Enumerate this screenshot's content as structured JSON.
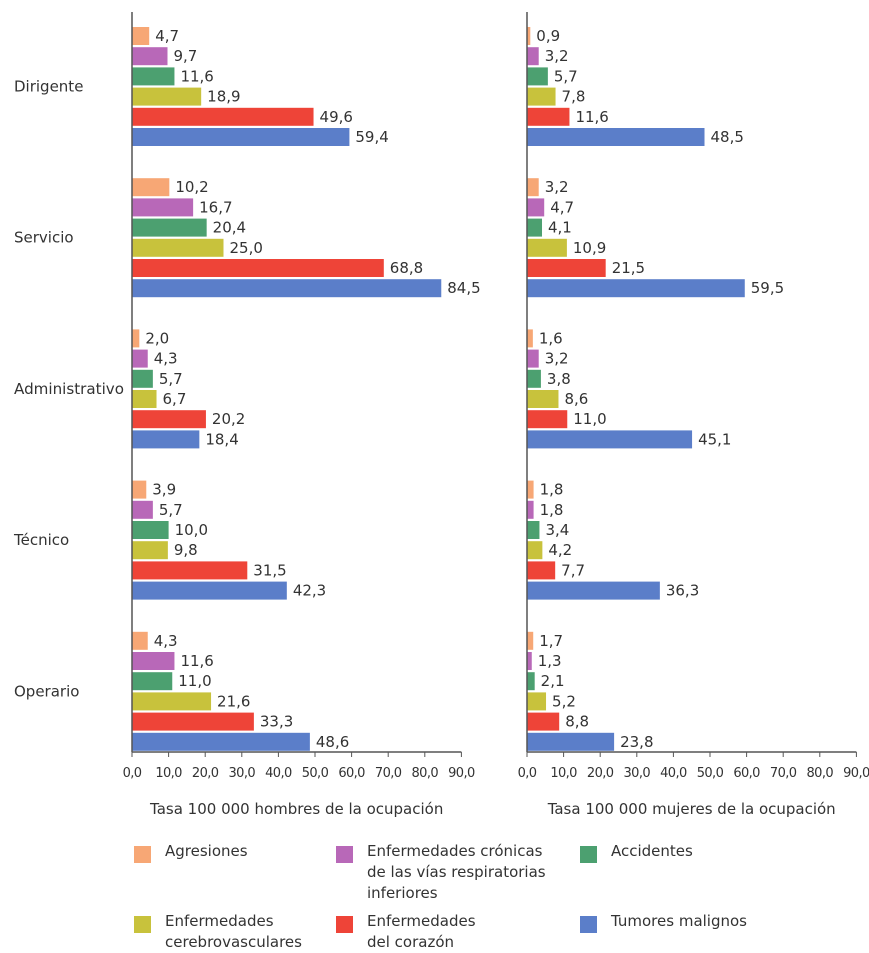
{
  "chart_data": {
    "type": "bar",
    "orientation": "horizontal",
    "categories": [
      "Dirigente",
      "Servicio",
      "Administrativo",
      "Técnico",
      "Operario"
    ],
    "series": [
      {
        "name": "Agresiones",
        "color": "#f7a775"
      },
      {
        "name": "Enfermedades crónicas de las vías respiratorias inferiores",
        "color": "#b868b8"
      },
      {
        "name": "Accidentes",
        "color": "#4ca070"
      },
      {
        "name": "Enfermedades cerebrovasculares",
        "color": "#c8c23c"
      },
      {
        "name": "Enfermedades del corazón",
        "color": "#ee4438"
      },
      {
        "name": "Tumores malignos",
        "color": "#5b7ec9"
      }
    ],
    "panels": [
      {
        "xlabel": "Tasa 100 000 hombres de la ocupación",
        "values": [
          [
            4.7,
            9.7,
            11.6,
            18.9,
            49.6,
            59.4
          ],
          [
            10.2,
            16.7,
            20.4,
            25.0,
            68.8,
            84.5
          ],
          [
            2.0,
            4.3,
            5.7,
            6.7,
            20.2,
            18.4
          ],
          [
            3.9,
            5.7,
            10.0,
            9.8,
            31.5,
            42.3
          ],
          [
            4.3,
            11.6,
            11.0,
            21.6,
            33.3,
            48.6
          ]
        ],
        "labels": [
          [
            "4,7",
            "9,7",
            "11,6",
            "18,9",
            "49,6",
            "59,4"
          ],
          [
            "10,2",
            "16,7",
            "20,4",
            "25,0",
            "68,8",
            "84,5"
          ],
          [
            "2,0",
            "4,3",
            "5,7",
            "6,7",
            "20,2",
            "18,4"
          ],
          [
            "3,9",
            "5,7",
            "10,0",
            "9,8",
            "31,5",
            "42,3"
          ],
          [
            "4,3",
            "11,6",
            "11,0",
            "21,6",
            "33,3",
            "48,6"
          ]
        ]
      },
      {
        "xlabel": "Tasa 100 000 mujeres de la ocupación",
        "values": [
          [
            0.9,
            3.2,
            5.7,
            7.8,
            11.6,
            48.5
          ],
          [
            3.2,
            4.7,
            4.1,
            10.9,
            21.5,
            59.5
          ],
          [
            1.6,
            3.2,
            3.8,
            8.6,
            11.0,
            45.1
          ],
          [
            1.8,
            1.8,
            3.4,
            4.2,
            7.7,
            36.3
          ],
          [
            1.7,
            1.3,
            2.1,
            5.2,
            8.8,
            23.8
          ]
        ],
        "labels": [
          [
            "0,9",
            "3,2",
            "5,7",
            "7,8",
            "11,6",
            "48,5"
          ],
          [
            "3,2",
            "4,7",
            "4,1",
            "10,9",
            "21,5",
            "59,5"
          ],
          [
            "1,6",
            "3,2",
            "3,8",
            "8,6",
            "11,0",
            "45,1"
          ],
          [
            "1,8",
            "1,8",
            "3,4",
            "4,2",
            "7,7",
            "36,3"
          ],
          [
            "1,7",
            "1,3",
            "2,1",
            "5,2",
            "8,8",
            "23,8"
          ]
        ]
      }
    ],
    "xlim": [
      0,
      90
    ],
    "xticks": [
      "0,0",
      "10,0",
      "20,0",
      "30,0",
      "40,0",
      "50,0",
      "60,0",
      "70,0",
      "80,0",
      "90,0"
    ],
    "grid": false,
    "legend_position": "bottom",
    "legend": {
      "items": [
        {
          "lines": [
            "Agresiones"
          ],
          "color": "#f7a775"
        },
        {
          "lines": [
            "Enfermedades crónicas",
            "de las vías respiratorias",
            "inferiores"
          ],
          "color": "#b868b8"
        },
        {
          "lines": [
            "Accidentes"
          ],
          "color": "#4ca070"
        },
        {
          "lines": [
            "Enfermedades",
            "cerebrovasculares"
          ],
          "color": "#c8c23c"
        },
        {
          "lines": [
            "Enfermedades",
            "del corazón"
          ],
          "color": "#ee4438"
        },
        {
          "lines": [
            "Tumores malignos"
          ],
          "color": "#5b7ec9"
        }
      ]
    }
  }
}
